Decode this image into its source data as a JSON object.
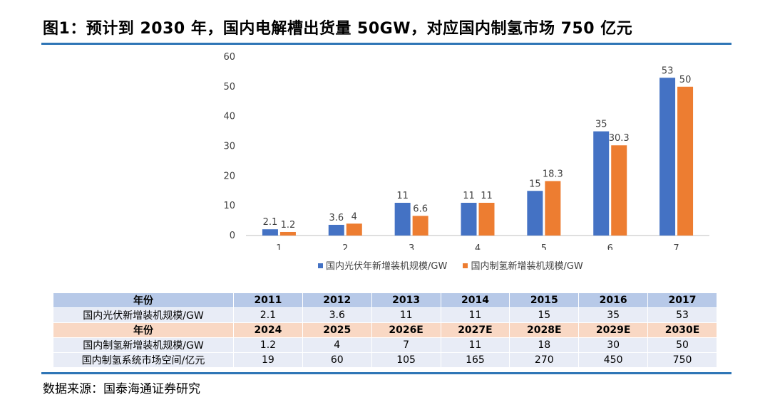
{
  "title": "图1：预计到 2030 年，国内电解槽出货量 50GW，对应国内制氢市场 750 亿元",
  "colors": {
    "series1": "#4472c4",
    "series2": "#ed7d31",
    "accent": "#2e75b6"
  },
  "chart_data": {
    "type": "bar",
    "title": "",
    "categories": [
      "1",
      "2",
      "3",
      "4",
      "5",
      "6",
      "7"
    ],
    "series": [
      {
        "name": "国内光伏年新增装机规模/GW",
        "values": [
          2.1,
          3.6,
          11,
          11,
          15,
          35,
          53
        ],
        "labels": [
          "2.1",
          "3.6",
          "11",
          "11",
          "15",
          "35",
          "53"
        ]
      },
      {
        "name": "国内制氢新增装机规模/GW",
        "values": [
          1.2,
          4,
          6.6,
          11,
          18.3,
          30.3,
          50
        ],
        "labels": [
          "1.2",
          "4",
          "6.6",
          "11",
          "18.3",
          "30.3",
          "50"
        ]
      }
    ],
    "yticks": [
      "0",
      "10",
      "20",
      "30",
      "40",
      "50",
      "60"
    ],
    "ylim": [
      0,
      60
    ],
    "xlabel": "",
    "ylabel": "",
    "legend_position": "bottom"
  },
  "table": {
    "header1": [
      "年份",
      "2011",
      "2012",
      "2013",
      "2014",
      "2015",
      "2016",
      "2017"
    ],
    "row1": [
      "国内光伏新增装机规模/GW",
      "2.1",
      "3.6",
      "11",
      "11",
      "15",
      "35",
      "53"
    ],
    "header2": [
      "年份",
      "2024",
      "2025",
      "2026E",
      "2027E",
      "2028E",
      "2029E",
      "2030E"
    ],
    "row2": [
      "国内制氢新增装机规模/GW",
      "1.2",
      "4",
      "7",
      "11",
      "18",
      "30",
      "50"
    ],
    "row3": [
      "国内制氢系统市场空间/亿元",
      "19",
      "60",
      "105",
      "165",
      "270",
      "450",
      "750"
    ]
  },
  "source": "数据来源：国泰海通证券研究"
}
